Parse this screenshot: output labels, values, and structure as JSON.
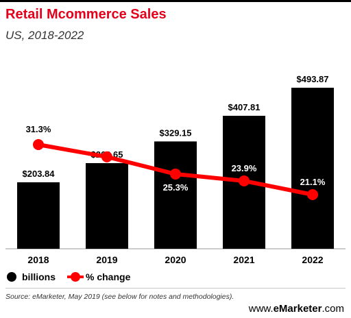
{
  "header": {
    "title": "Retail Mcommerce Sales",
    "subtitle": "US, 2018-2022"
  },
  "legend": {
    "items": [
      {
        "label": "billions",
        "color": "#000000",
        "icon": "circle-icon"
      },
      {
        "label": "% change",
        "color": "#ff0000",
        "icon": "line-dot-icon"
      }
    ]
  },
  "footer": {
    "source": "Source: eMarketer, May 2019 (see below for notes and methodologies).",
    "brand_prefix": "www.",
    "brand_name": "eMarketer",
    "brand_suffix": ".com"
  },
  "chart_data": {
    "type": "bar",
    "categories": [
      "2018",
      "2019",
      "2020",
      "2021",
      "2022"
    ],
    "series": [
      {
        "name": "billions",
        "type": "bar",
        "values": [
          203.84,
          262.65,
          329.15,
          407.81,
          493.87
        ],
        "labels": [
          "$203.84",
          "$262.65",
          "$329.15",
          "$407.81",
          "$493.87"
        ],
        "color": "#000000"
      },
      {
        "name": "% change",
        "type": "line",
        "values": [
          31.3,
          28.8,
          25.3,
          23.9,
          21.1
        ],
        "labels": [
          "31.3%",
          "28.8%",
          "25.3%",
          "23.9%",
          "21.1%"
        ],
        "color": "#ff0000"
      }
    ],
    "grid": false,
    "legend_position": "bottom-left"
  }
}
